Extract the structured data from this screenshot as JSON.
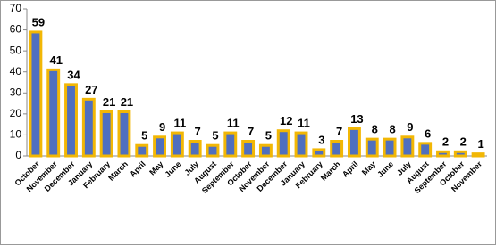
{
  "chart_data": {
    "type": "bar",
    "categories": [
      "October",
      "November",
      "December",
      "January",
      "February",
      "March",
      "April",
      "May",
      "June",
      "July",
      "August",
      "September",
      "October",
      "November",
      "December",
      "January",
      "February",
      "March",
      "April",
      "May",
      "June",
      "July",
      "August",
      "September",
      "October",
      "November"
    ],
    "values": [
      59,
      41,
      34,
      27,
      21,
      21,
      5,
      9,
      11,
      7,
      5,
      11,
      7,
      5,
      12,
      11,
      3,
      7,
      13,
      8,
      8,
      9,
      6,
      2,
      2,
      1
    ],
    "color": "#4f6fbf",
    "edge_color": "#f2b705",
    "ylim": [
      0,
      70
    ],
    "yticks": [
      0,
      10,
      20,
      30,
      40,
      50,
      60,
      70
    ],
    "grid": false
  }
}
